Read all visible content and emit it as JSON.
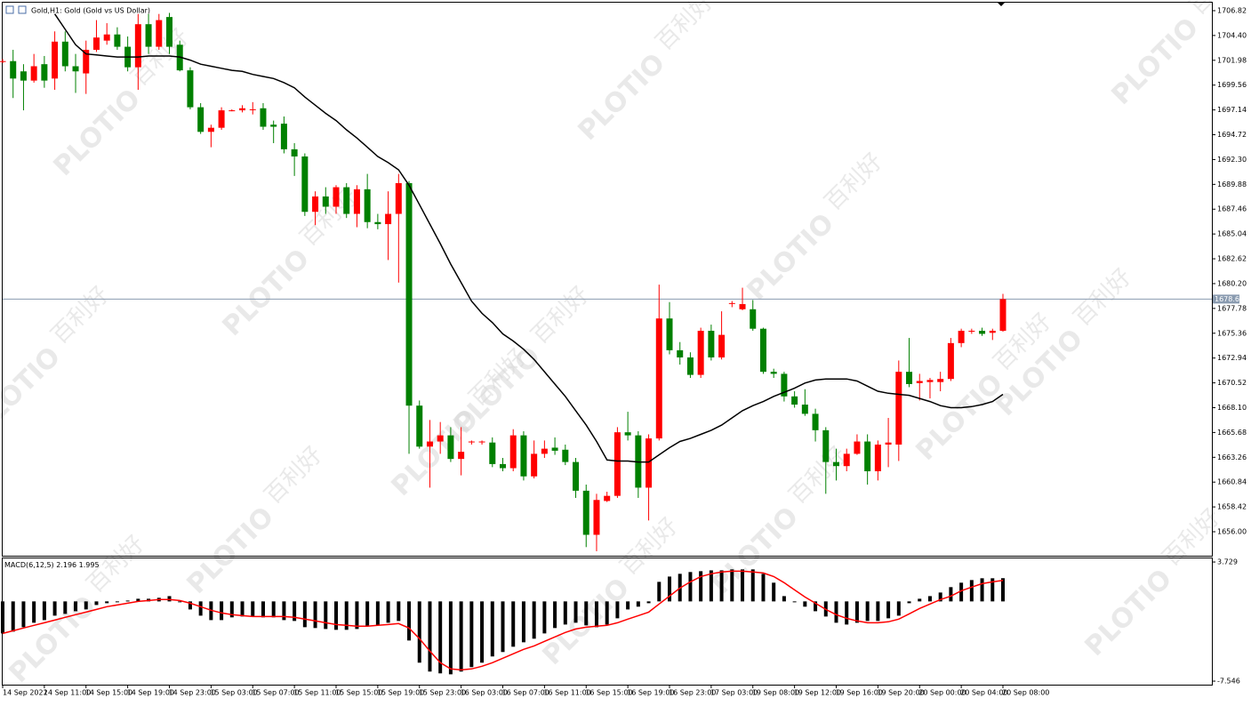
{
  "chart_data": [
    {
      "type": "candlestick",
      "title": "Gold,H1: Gold (Gold vs US Dollar)",
      "watermark": "百利好",
      "watermark_brand": "PLOTIO",
      "categories": [
        "14 Sep 2022",
        null,
        null,
        null,
        "14 Sep 11:00",
        null,
        null,
        null,
        "14 Sep 15:00",
        null,
        null,
        null,
        "14 Sep 19:00",
        null,
        null,
        null,
        "14 Sep 23:00",
        null,
        null,
        null,
        "15 Sep 03:00",
        null,
        null,
        null,
        "15 Sep 07:00",
        null,
        null,
        null,
        "15 Sep 11:00",
        null,
        null,
        null,
        "15 Sep 15:00",
        null,
        null,
        null,
        "15 Sep 19:00",
        null,
        null,
        null,
        "15 Sep 23:00",
        null,
        null,
        null,
        "16 Sep 03:00",
        null,
        null,
        null,
        "16 Sep 07:00",
        null,
        null,
        null,
        "16 Sep 11:00",
        null,
        null,
        null,
        "16 Sep 15:00",
        null,
        null,
        null,
        "16 Sep 19:00",
        null,
        null,
        null,
        "16 Sep 23:00",
        null,
        null,
        null,
        "17 Sep 03:00",
        null,
        null,
        null,
        "19 Sep 08:00",
        null,
        null,
        null,
        "19 Sep 12:00",
        null,
        null,
        null,
        "19 Sep 16:00",
        null,
        null,
        null,
        "19 Sep 20:00",
        null,
        null,
        null,
        "20 Sep 00:00",
        null,
        null,
        null,
        "20 Sep 04:00",
        null,
        null,
        null,
        "20 Sep 08:00"
      ],
      "open": [
        1701.9,
        1701.9,
        1700.9,
        1700.0,
        1701.6,
        1700.2,
        1703.8,
        1701.4,
        1700.7,
        1703.0,
        1703.9,
        1704.5,
        1703.3,
        1701.3,
        1705.5,
        1703.3,
        1706.2,
        1703.5,
        1701.0,
        1697.4,
        1695.0,
        1695.4,
        1697.1,
        1697.1,
        1697.2,
        1697.3,
        1695.7,
        1695.8,
        1693.3,
        1692.6,
        1687.2,
        1688.7,
        1687.7,
        1689.6,
        1687.0,
        1689.4,
        1686.2,
        1686.0,
        1687.0,
        1690.0,
        1668.3,
        1664.3,
        1664.8,
        1665.4,
        1663.1,
        1664.8,
        1664.8,
        1664.7,
        1662.6,
        1662.2,
        1665.4,
        1661.4,
        1663.6,
        1664.2,
        1664.0,
        1662.8,
        1660.0,
        1655.7,
        1659.0,
        1659.5,
        1665.7,
        1665.4,
        1660.3,
        1665.1,
        1676.8,
        1673.7,
        1673.0,
        1671.3,
        1675.6,
        1673.0,
        1678.3,
        1677.7,
        1677.7,
        1675.8,
        1671.6,
        1671.4,
        1669.2,
        1668.4,
        1667.5,
        1665.9,
        1662.8,
        1662.4,
        1663.6,
        1664.8,
        1661.9,
        1664.5,
        1664.5,
        1671.6,
        1670.5,
        1670.6,
        1670.6,
        1670.9,
        1674.4,
        1675.6,
        1675.6,
        1675.4,
        1675.6
      ],
      "high": [
        1702.1,
        1703.0,
        1701.6,
        1702.6,
        1702.4,
        1704.8,
        1704.8,
        1702.6,
        1703.9,
        1705.9,
        1705.6,
        1705.2,
        1704.3,
        1706.5,
        1706.5,
        1706.5,
        1706.6,
        1703.9,
        1701.3,
        1697.8,
        1695.7,
        1697.4,
        1697.2,
        1697.6,
        1697.9,
        1697.8,
        1696.1,
        1696.5,
        1693.9,
        1692.9,
        1689.2,
        1689.6,
        1689.8,
        1690.0,
        1689.8,
        1690.9,
        1687.0,
        1689.2,
        1690.9,
        1690.2,
        1668.8,
        1666.9,
        1666.7,
        1666.2,
        1666.2,
        1664.9,
        1664.9,
        1665.2,
        1663.2,
        1666.0,
        1665.8,
        1664.9,
        1664.9,
        1665.2,
        1664.5,
        1663.2,
        1660.6,
        1659.7,
        1659.9,
        1666.2,
        1667.7,
        1665.8,
        1665.5,
        1680.1,
        1678.4,
        1674.5,
        1673.5,
        1675.9,
        1676.2,
        1677.5,
        1678.5,
        1679.8,
        1678.6,
        1675.9,
        1671.9,
        1671.6,
        1669.7,
        1669.9,
        1668.0,
        1666.2,
        1664.1,
        1664.1,
        1665.5,
        1665.5,
        1664.9,
        1667.1,
        1672.7,
        1674.9,
        1671.4,
        1671.0,
        1671.6,
        1674.9,
        1675.8,
        1675.8,
        1675.9,
        1675.8,
        1679.2
      ],
      "low": [
        1701.7,
        1698.3,
        1697.1,
        1699.8,
        1699.3,
        1699.1,
        1700.9,
        1698.8,
        1698.7,
        1702.8,
        1703.5,
        1703.0,
        1700.9,
        1699.1,
        1702.6,
        1703.0,
        1702.6,
        1700.9,
        1697.2,
        1694.8,
        1693.5,
        1695.2,
        1697.0,
        1696.9,
        1696.7,
        1695.2,
        1693.9,
        1692.9,
        1690.7,
        1686.8,
        1685.9,
        1687.0,
        1687.0,
        1686.6,
        1685.7,
        1685.6,
        1685.5,
        1682.5,
        1680.3,
        1663.6,
        1664.1,
        1660.3,
        1663.6,
        1662.8,
        1661.5,
        1664.5,
        1664.5,
        1662.3,
        1661.9,
        1661.9,
        1661.0,
        1661.2,
        1663.2,
        1663.5,
        1662.5,
        1659.3,
        1654.5,
        1654.1,
        1658.9,
        1659.3,
        1664.9,
        1659.3,
        1657.1,
        1664.9,
        1673.3,
        1672.3,
        1671.0,
        1671.0,
        1672.7,
        1672.8,
        1677.9,
        1677.6,
        1675.6,
        1671.4,
        1671.0,
        1668.7,
        1668.1,
        1667.3,
        1664.8,
        1659.7,
        1661.0,
        1661.9,
        1663.5,
        1660.6,
        1661.0,
        1662.3,
        1662.9,
        1670.1,
        1668.8,
        1669.0,
        1669.7,
        1670.7,
        1674.0,
        1675.3,
        1675.1,
        1674.7,
        1675.5
      ],
      "close": [
        1701.9,
        1700.2,
        1700.0,
        1701.4,
        1700.0,
        1703.8,
        1701.4,
        1700.9,
        1703.0,
        1704.2,
        1704.5,
        1703.3,
        1701.3,
        1705.5,
        1703.3,
        1705.9,
        1703.3,
        1701.0,
        1697.4,
        1695.0,
        1695.4,
        1697.1,
        1697.1,
        1697.3,
        1697.2,
        1695.5,
        1695.5,
        1693.3,
        1692.6,
        1687.2,
        1688.7,
        1687.7,
        1689.6,
        1687.0,
        1689.4,
        1686.2,
        1686.0,
        1687.0,
        1690.0,
        1668.3,
        1664.3,
        1664.8,
        1665.4,
        1663.1,
        1663.8,
        1664.8,
        1664.8,
        1662.6,
        1662.2,
        1665.4,
        1661.4,
        1663.6,
        1664.1,
        1663.9,
        1662.8,
        1660.0,
        1655.7,
        1659.1,
        1659.5,
        1665.7,
        1665.4,
        1660.3,
        1665.1,
        1676.8,
        1673.7,
        1673.0,
        1671.3,
        1675.6,
        1673.0,
        1675.2,
        1678.3,
        1678.2,
        1675.8,
        1671.6,
        1671.4,
        1669.2,
        1668.4,
        1667.5,
        1665.9,
        1662.8,
        1662.4,
        1663.6,
        1664.8,
        1661.9,
        1664.5,
        1664.7,
        1671.6,
        1670.4,
        1670.7,
        1670.8,
        1670.9,
        1674.4,
        1675.6,
        1675.6,
        1675.3,
        1675.6,
        1678.69
      ],
      "ma": [
        null,
        null,
        null,
        null,
        null,
        1706.5,
        1705.0,
        1703.5,
        1702.6,
        1702.5,
        1702.4,
        1702.3,
        1702.3,
        1702.3,
        1702.4,
        1702.4,
        1702.4,
        1702.3,
        1702.0,
        1701.6,
        1701.4,
        1701.2,
        1701.0,
        1700.9,
        1700.6,
        1700.4,
        1700.2,
        1699.8,
        1699.3,
        1698.4,
        1697.6,
        1696.8,
        1696.1,
        1695.2,
        1694.4,
        1693.5,
        1692.6,
        1692.0,
        1691.3,
        1689.8,
        1687.9,
        1686.0,
        1684.1,
        1682.1,
        1680.3,
        1678.5,
        1677.3,
        1676.4,
        1675.3,
        1674.6,
        1673.8,
        1672.8,
        1671.6,
        1670.4,
        1669.2,
        1667.8,
        1666.4,
        1664.8,
        1663.0,
        1662.9,
        1662.9,
        1662.8,
        1662.8,
        1663.5,
        1664.2,
        1664.8,
        1665.1,
        1665.5,
        1665.9,
        1666.4,
        1667.1,
        1667.8,
        1668.3,
        1668.7,
        1669.2,
        1669.6,
        1670.0,
        1670.5,
        1670.8,
        1670.9,
        1670.9,
        1670.9,
        1670.7,
        1670.2,
        1669.7,
        1669.5,
        1669.4,
        1669.3,
        1669.0,
        1668.7,
        1668.3,
        1668.1,
        1668.1,
        1668.2,
        1668.4,
        1668.7,
        1669.4
      ],
      "up_color": "#ff0000",
      "down_color": "#008000",
      "ma_color": "#000000",
      "current_price": 1678.69,
      "current_price_color": "#8a9bb0",
      "ylim": [
        1653.66,
        1707.6
      ],
      "yticks": [
        1706.82,
        {
          "value": 1704.4,
          "label": "1704.40"
        },
        1701.98,
        1699.56,
        1697.14,
        1694.72,
        {
          "value": 1692.3,
          "label": "1692.30"
        },
        1689.88,
        1687.46,
        1685.04,
        1682.62,
        {
          "value": 1680.2,
          "label": "1680.20"
        },
        1677.78,
        1675.36,
        1672.94,
        1670.52,
        {
          "value": 1668.1,
          "label": "1668.10"
        },
        1665.68,
        1663.26,
        1660.84,
        1658.42,
        {
          "value": 1656.0,
          "label": "1656.00"
        }
      ]
    },
    {
      "type": "macd",
      "title": "MACD(6,12,5)",
      "histogram": [
        -3.03,
        -2.86,
        -2.44,
        -2.02,
        -1.77,
        -1.35,
        -1.18,
        -0.93,
        -0.76,
        -0.34,
        -0.17,
        0,
        0.08,
        0.25,
        0.25,
        0.34,
        0.5,
        0,
        -0.76,
        -1.35,
        -1.77,
        -1.77,
        -1.51,
        -1.43,
        -1.43,
        -1.51,
        -1.51,
        -1.77,
        -1.85,
        -2.44,
        -2.52,
        -2.61,
        -2.69,
        -2.69,
        -2.61,
        -2.35,
        -2.27,
        -2.02,
        -1.85,
        -3.7,
        -5.8,
        -6.64,
        -6.81,
        -6.9,
        -6.64,
        -6.22,
        -5.8,
        -5.21,
        -4.79,
        -4.29,
        -3.87,
        -3.53,
        -3.03,
        -2.52,
        -2.19,
        -2.02,
        -2.27,
        -2.44,
        -2.19,
        -1.6,
        -0.76,
        -0.5,
        -0.17,
        1.85,
        2.35,
        2.61,
        2.78,
        2.86,
        2.94,
        2.94,
        3.03,
        3.03,
        3.03,
        2.61,
        1.77,
        0.5,
        -0.08,
        -0.5,
        -0.93,
        -1.43,
        -2.02,
        -2.19,
        -2.02,
        -1.85,
        -1.85,
        -1.6,
        -1.35,
        -0.17,
        0.25,
        0.5,
        0.84,
        1.35,
        1.77,
        2.02,
        2.19,
        2.19,
        2.196
      ],
      "signal": [
        -3.03,
        -2.78,
        -2.52,
        -2.27,
        -2.02,
        -1.77,
        -1.51,
        -1.26,
        -1.01,
        -0.76,
        -0.5,
        -0.34,
        -0.17,
        0,
        0.08,
        0.17,
        0.17,
        0.08,
        -0.17,
        -0.5,
        -0.84,
        -1.09,
        -1.26,
        -1.35,
        -1.43,
        -1.43,
        -1.43,
        -1.43,
        -1.51,
        -1.68,
        -1.85,
        -2.02,
        -2.19,
        -2.27,
        -2.35,
        -2.35,
        -2.27,
        -2.19,
        -2.1,
        -2.52,
        -3.53,
        -4.71,
        -5.8,
        -6.39,
        -6.48,
        -6.39,
        -6.14,
        -5.8,
        -5.38,
        -4.96,
        -4.54,
        -4.21,
        -3.78,
        -3.36,
        -2.94,
        -2.61,
        -2.44,
        -2.35,
        -2.27,
        -2.02,
        -1.68,
        -1.35,
        -1.01,
        -0.25,
        0.5,
        1.26,
        1.85,
        2.35,
        2.61,
        2.78,
        2.86,
        2.86,
        2.78,
        2.69,
        2.35,
        1.77,
        1.09,
        0.42,
        -0.17,
        -0.76,
        -1.26,
        -1.6,
        -1.85,
        -2.02,
        -2.02,
        -1.93,
        -1.68,
        -1.18,
        -0.67,
        -0.25,
        0.17,
        0.5,
        1.01,
        1.35,
        1.68,
        1.85,
        1.995
      ],
      "hist_color": "#000000",
      "signal_color": "#ff0000",
      "ylim": [
        -7.88,
        4.07
      ],
      "yticks": [
        3.729,
        -7.546
      ]
    }
  ]
}
